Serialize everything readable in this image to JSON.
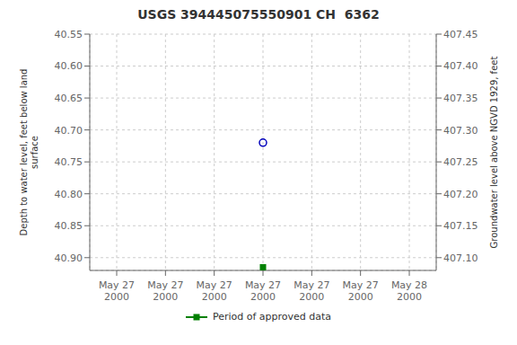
{
  "chart_data": {
    "type": "scatter",
    "title": "USGS 394445075550901 CH  6362",
    "ylabel": "Depth to water level, feet below land\nsurface",
    "y2label": "Groundwater level above NGVD 1929, feet",
    "categories": [
      "May 27\n2000",
      "May 27\n2000",
      "May 27\n2000",
      "May 27\n2000",
      "May 27\n2000",
      "May 27\n2000",
      "May 28\n2000"
    ],
    "series": [
      {
        "color": "#0000bb",
        "marker": "open_circle",
        "values": [
          null,
          null,
          null,
          40.72,
          null,
          null,
          null
        ]
      },
      {
        "name": "Period of approved data",
        "color": "#008000",
        "marker": "square",
        "values": [
          null,
          null,
          null,
          40.915,
          null,
          null,
          null
        ]
      }
    ],
    "ylim": [
      40.92,
      40.55
    ],
    "yticks": [
      40.55,
      {
        "value": 40.6,
        "label": "40.60"
      },
      40.65,
      {
        "value": 40.7,
        "label": "40.70"
      },
      40.75,
      {
        "value": 40.8,
        "label": "40.80"
      },
      40.85,
      {
        "value": 40.9,
        "label": "40.90"
      }
    ],
    "y2lim": [
      407.08,
      407.45
    ],
    "y2ticks": [
      407.45,
      {
        "value": 407.4,
        "label": "407.40"
      },
      407.35,
      {
        "value": 407.3,
        "label": "407.30"
      },
      407.25,
      {
        "value": 407.2,
        "label": "407.20"
      },
      407.15,
      {
        "value": 407.1,
        "label": "407.10"
      }
    ],
    "grid": true,
    "legend": "bottom"
  }
}
